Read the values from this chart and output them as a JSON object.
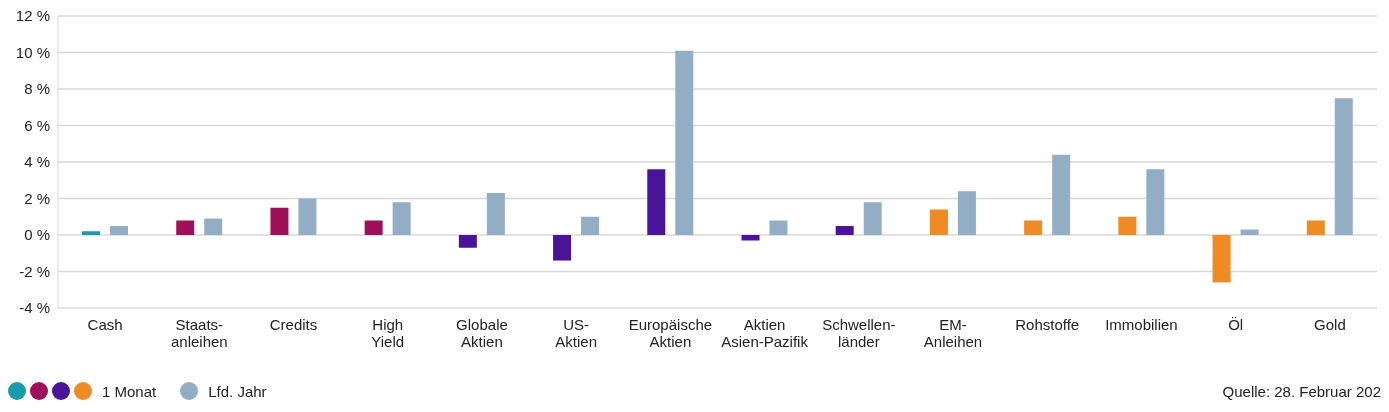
{
  "chart_data": {
    "type": "bar",
    "categories": [
      "Cash",
      "Staats-\nanleihen",
      "Credits",
      "High\nYield",
      "Globale\nAktien",
      "US-\nAktien",
      "Europäische\nAktien",
      "Aktien\nAsien-Pazifik",
      "Schwellen-\nländer",
      "EM-\nAnleihen",
      "Rohstoffe",
      "Immobilien",
      "Öl",
      "Gold"
    ],
    "series": [
      {
        "name": "1 Monat",
        "colors": [
          "#1a9aaa",
          "#a0105a",
          "#a0105a",
          "#a0105a",
          "#4a149a",
          "#4a149a",
          "#4a149a",
          "#4a149a",
          "#4a149a",
          "#f08a24",
          "#f08a24",
          "#f08a24",
          "#f08a24",
          "#f08a24"
        ],
        "values": [
          0.2,
          0.8,
          1.5,
          0.8,
          -0.7,
          -1.4,
          3.6,
          -0.3,
          0.5,
          1.4,
          0.8,
          1.0,
          -2.6,
          0.8
        ]
      },
      {
        "name": "Lfd. Jahr",
        "color": "#93aec4",
        "values": [
          0.5,
          0.9,
          2.0,
          1.8,
          2.3,
          1.0,
          10.1,
          0.8,
          1.8,
          2.4,
          4.4,
          3.6,
          0.3,
          7.5
        ]
      }
    ],
    "ylim": [
      -4,
      12
    ],
    "yticks": [
      {
        "value": -4,
        "label": "-4 %"
      },
      {
        "value": -2,
        "label": "-2 %"
      },
      {
        "value": 0,
        "label": "0 %"
      },
      {
        "value": 2,
        "label": "2 %"
      },
      {
        "value": 4,
        "label": "4 %"
      },
      {
        "value": 6,
        "label": "6 %"
      },
      {
        "value": 8,
        "label": "8 %"
      },
      {
        "value": 10,
        "label": "10 %"
      },
      {
        "value": 12,
        "label": "12 %"
      }
    ],
    "grid": "y",
    "legend": "bottom left",
    "annotations": [
      "Quelle: 28. Februar 202"
    ]
  }
}
